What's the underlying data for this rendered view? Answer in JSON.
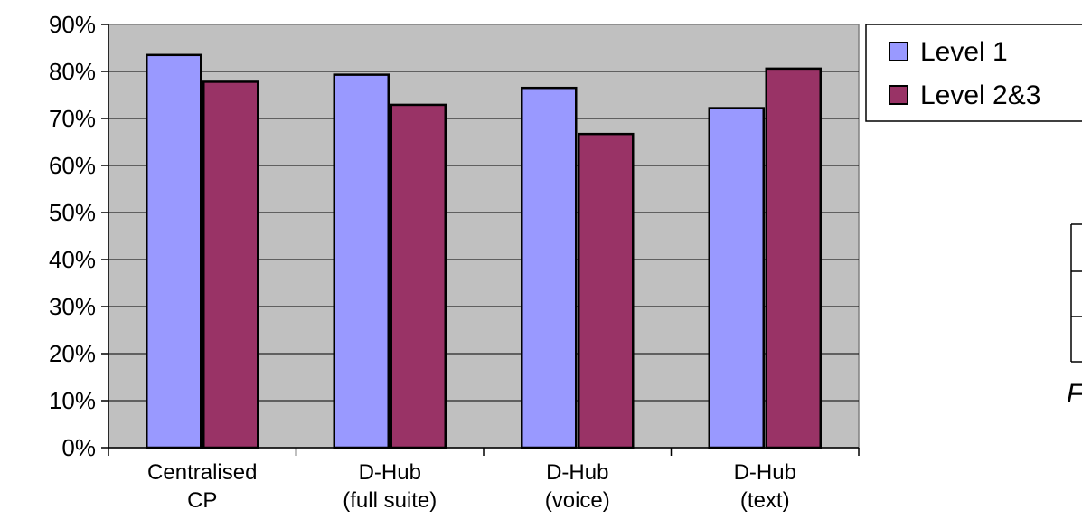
{
  "chart_data": {
    "type": "bar",
    "title": "",
    "xlabel": "",
    "ylabel": "",
    "categories": [
      [
        "Centralised",
        "CP"
      ],
      [
        "D-Hub",
        "(full suite)"
      ],
      [
        "D-Hub",
        "(voice)"
      ],
      [
        "D-Hub",
        "(text)"
      ]
    ],
    "series": [
      {
        "name": "Level 1",
        "color": "#9999ff",
        "values": [
          83.5,
          79.3,
          76.5,
          72.2
        ]
      },
      {
        "name": "Level 2&3",
        "color": "#993366",
        "values": [
          77.8,
          72.9,
          66.7,
          80.6
        ]
      }
    ],
    "ylim": [
      0,
      90
    ],
    "yticks": [
      "0%",
      "10%",
      "20%",
      "30%",
      "40%",
      "50%",
      "60%",
      "70%",
      "80%",
      "90%"
    ],
    "grid": true,
    "plot_background": "#c0c0c0",
    "legend_position": "right"
  },
  "side_caption_fragment": "F"
}
